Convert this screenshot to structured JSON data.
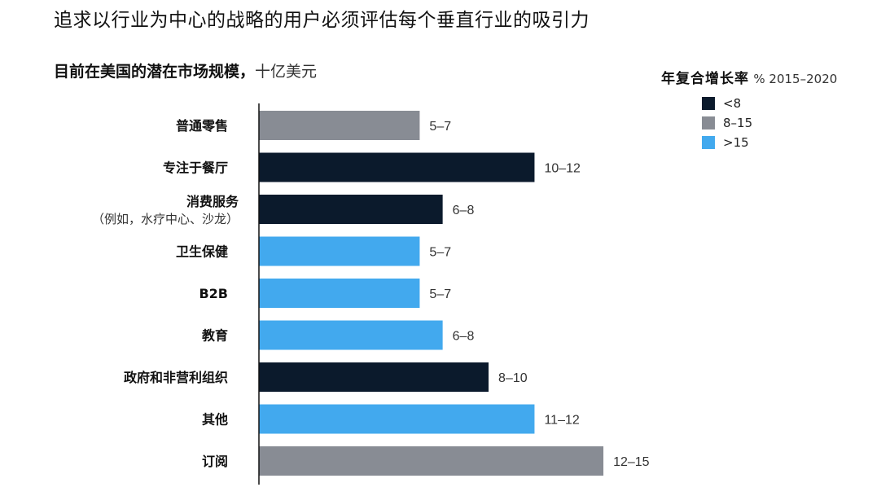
{
  "title": "追求以行业为中心的战略的用户必须评估每个垂直行业的吸引力",
  "subtitle": {
    "bold": "目前在美国的潜在市场规模，",
    "unit": "十亿美元"
  },
  "legend": {
    "title": "年复合增长率",
    "unit": "% 2015–2020",
    "items": [
      {
        "label": "<8",
        "color": "#0b1a2c"
      },
      {
        "label": "8–15",
        "color": "#888c94"
      },
      {
        "label": ">15",
        "color": "#42a9ee"
      }
    ]
  },
  "chart_data": {
    "type": "bar",
    "orientation": "horizontal",
    "title": "追求以行业为中心的战略的用户必须评估每个垂直行业的吸引力",
    "subtitle": "目前在美国的潜在市场规模，十亿美元",
    "categories": [
      {
        "label": "普通零售",
        "sublabel": ""
      },
      {
        "label": "专注于餐厅",
        "sublabel": ""
      },
      {
        "label": "消费服务",
        "sublabel": "（例如，水疗中心、沙龙）"
      },
      {
        "label": "卫生保健",
        "sublabel": ""
      },
      {
        "label": "B2B",
        "sublabel": ""
      },
      {
        "label": "教育",
        "sublabel": ""
      },
      {
        "label": "政府和非营利组织",
        "sublabel": ""
      },
      {
        "label": "其他",
        "sublabel": ""
      },
      {
        "label": "订阅",
        "sublabel": ""
      }
    ],
    "ranges": [
      [
        5,
        7
      ],
      [
        10,
        12
      ],
      [
        6,
        8
      ],
      [
        5,
        7
      ],
      [
        5,
        7
      ],
      [
        6,
        8
      ],
      [
        8,
        10
      ],
      [
        11,
        12
      ],
      [
        12,
        15
      ]
    ],
    "value_labels": [
      "5–7",
      "10–12",
      "6–8",
      "5–7",
      "5–7",
      "6–8",
      "8–10",
      "11–12",
      "12–15"
    ],
    "bar_values": [
      7,
      12,
      8,
      7,
      7,
      8,
      10,
      12,
      15
    ],
    "growth_group": [
      "8–15",
      "<8",
      "<8",
      ">15",
      ">15",
      ">15",
      "<8",
      ">15",
      "8–15"
    ],
    "xlim": [
      0,
      15.6
    ],
    "legend_title": "年复合增长率 % 2015–2020",
    "legend_position": "top-right",
    "grid": false
  }
}
